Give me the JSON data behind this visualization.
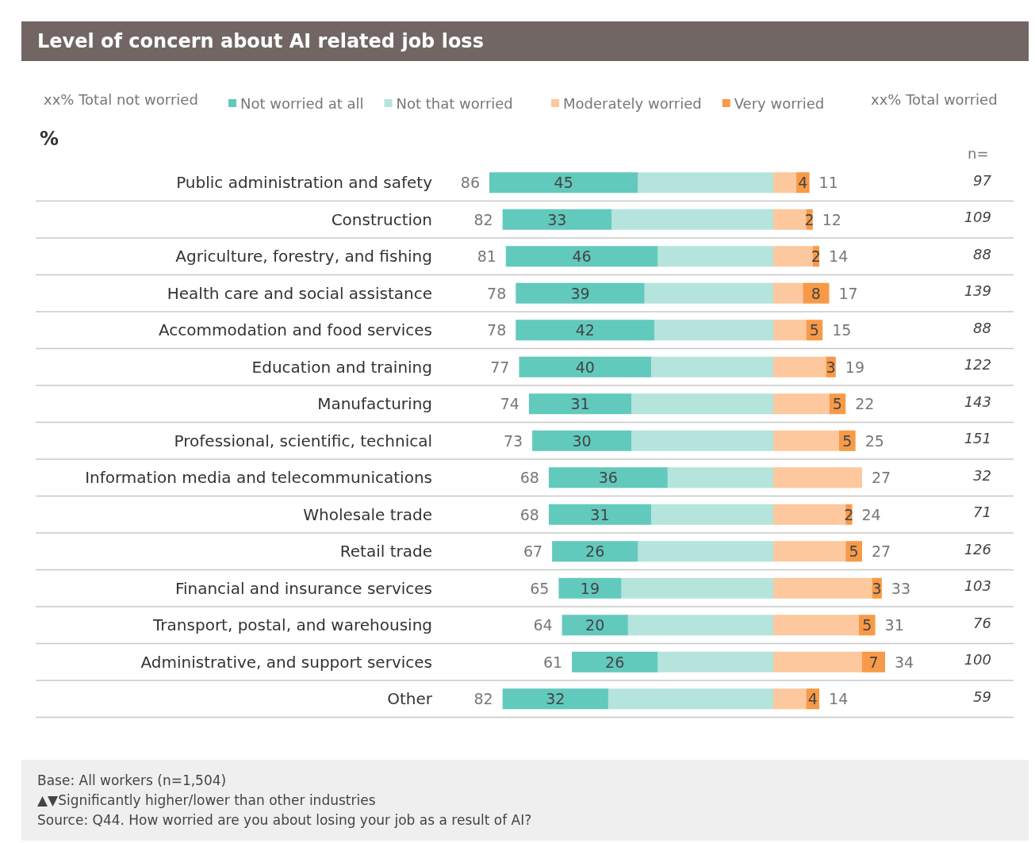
{
  "chart_data": [
    {
      "type": "bar",
      "orientation": "horizontal",
      "stacked": true,
      "title": "Level of concern about AI related job loss",
      "categories": [
        "Public administration and safety",
        "Construction",
        "Agriculture, forestry, and fishing",
        "Health care and social assistance",
        "Accommodation and food services",
        "Education and training",
        "Manufacturing",
        "Professional, scientific, technical",
        "Information media and telecommunications",
        "Wholesale trade",
        "Retail trade",
        "Financial and insurance services",
        "Transport, postal, and warehousing",
        "Administrative, and support services",
        "Other"
      ],
      "series": [
        {
          "name": "Not that worried",
          "color": "#b5e4dd",
          "values": [
            41,
            49,
            35,
            39,
            36,
            37,
            43,
            43,
            32,
            37,
            41,
            46,
            44,
            35,
            50
          ]
        },
        {
          "name": "Not worried at all",
          "color": "#62c9bd",
          "values": [
            45,
            33,
            46,
            39,
            42,
            40,
            31,
            30,
            36,
            31,
            26,
            19,
            20,
            26,
            32
          ],
          "value_labels": [
            "45",
            "33",
            "46",
            "39",
            "42",
            "40",
            "31",
            "30",
            "36",
            "31",
            "26",
            "19",
            "20",
            "26",
            "32"
          ]
        }
      ],
      "totals": [
        "86",
        "82",
        "81",
        "78",
        "78",
        "77",
        "74",
        "73",
        "68",
        "68",
        "67",
        "65",
        "64",
        "61",
        "82"
      ],
      "tick_labels": "y",
      "grid": "y",
      "legend": "top",
      "annotations": [
        "xx% Total not worried",
        "%",
        "Base: All workers (n=1,504)",
        "▲▼Significantly higher/lower than other industries",
        "Source: Q44. How worried are you about losing your job as a result of AI?"
      ]
    },
    {
      "type": "bar",
      "orientation": "horizontal",
      "stacked": true,
      "categories": [
        null,
        null,
        null,
        null,
        null,
        null,
        null,
        null,
        null,
        null,
        null,
        null,
        null,
        null,
        null
      ],
      "series": [
        {
          "name": "Moderately worried",
          "color": "#fdc89d",
          "values": [
            7,
            10,
            12,
            9,
            10,
            16,
            17,
            20,
            27,
            22,
            22,
            30,
            26,
            27,
            10
          ]
        },
        {
          "name": "Very worried",
          "color": "#f79a48",
          "values": [
            4,
            2,
            2,
            8,
            5,
            3,
            5,
            5,
            null,
            2,
            5,
            3,
            5,
            7,
            4
          ],
          "value_labels": [
            "4",
            "2",
            "2",
            "8",
            "5",
            "3",
            "5",
            "5",
            null,
            "2",
            "5",
            "3",
            "5",
            "7",
            "4"
          ]
        }
      ],
      "totals": [
        "11",
        "12",
        "14",
        "17",
        "15",
        "19",
        "22",
        "25",
        "27",
        "24",
        "27",
        "33",
        "31",
        "34",
        "14"
      ],
      "tick_labels": false,
      "grid": "y",
      "legend": "top",
      "annotations": [
        "xx% Total worried",
        "n=",
        "97",
        "109",
        "88",
        "139",
        "88",
        "122",
        "143",
        "151",
        "32",
        "71",
        "126",
        "103",
        "76",
        "100",
        "59"
      ]
    }
  ]
}
